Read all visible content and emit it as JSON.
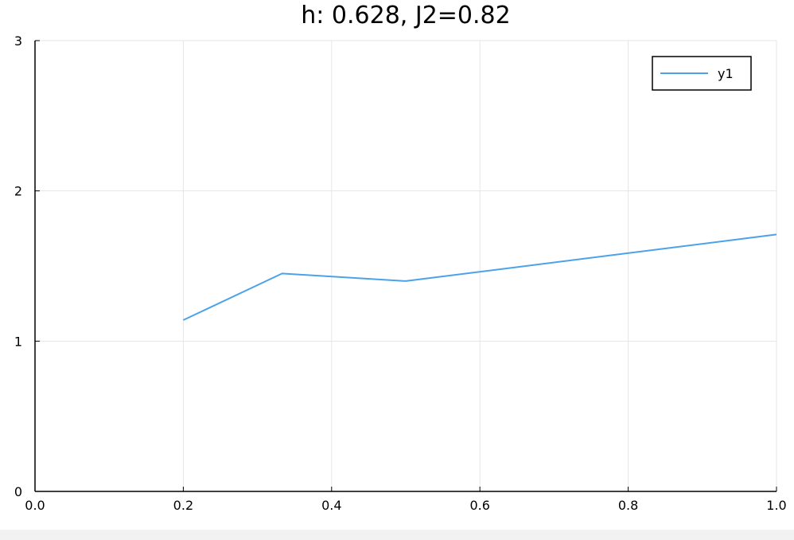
{
  "chart_data": {
    "type": "line",
    "title": "h: 0.628, J2=0.82",
    "xlabel": "",
    "ylabel": "",
    "xlim": [
      0.0,
      1.0
    ],
    "ylim": [
      0,
      3
    ],
    "xticks": [
      0.0,
      0.2,
      0.4,
      0.6,
      0.8,
      1.0
    ],
    "xtick_labels": [
      "0.0",
      "0.2",
      "0.4",
      "0.6",
      "0.8",
      "1.0"
    ],
    "yticks": [
      0,
      1,
      2,
      3
    ],
    "ytick_labels": [
      "0",
      "1",
      "2",
      "3"
    ],
    "grid": true,
    "legend": "top-right",
    "series": [
      {
        "name": "y1",
        "color": "#4aa3ea",
        "x": [
          0.2,
          0.3333,
          0.5,
          1.0
        ],
        "y": [
          1.14,
          1.45,
          1.4,
          1.71
        ]
      }
    ]
  }
}
